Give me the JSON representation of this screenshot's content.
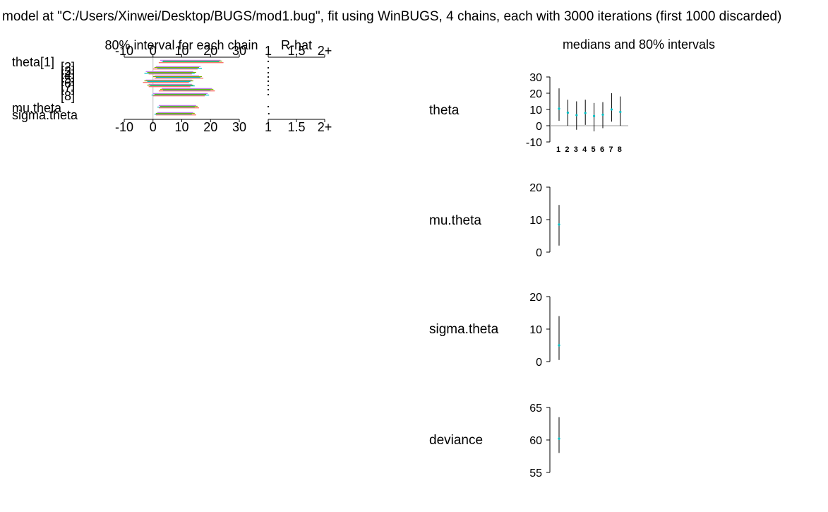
{
  "header": {
    "title": "model at \"C:/Users/Xinwei/Desktop/BUGS/mod1.bug\", fit using WinBUGS, 4 chains, each with 3000 iterations (first 1000 discarded)"
  },
  "colors": {
    "chains": [
      "#c77cff",
      "#7cae00",
      "#00bfc4",
      "#f8766d"
    ],
    "interval_line": "#000000",
    "median_point": "#00bfc4",
    "grid_line": "#999999",
    "zero_line": "#bdbdbd"
  },
  "chart_data": [
    {
      "type": "interval",
      "title": "80% interval for each chain",
      "rows": [
        "theta[1]",
        "[2]",
        "[3]",
        "[4]",
        "[5]",
        "[6]",
        "[7]",
        "[8]",
        "mu.theta",
        "sigma.theta"
      ],
      "xlim": [
        -10,
        30
      ],
      "x_ticks": [
        "-10",
        "0",
        "10",
        "20",
        "30"
      ],
      "x_tick_values": [
        -10,
        0,
        10,
        20,
        30
      ],
      "axis_top": true,
      "axis_bottom": true,
      "series": [
        {
          "values": [
            [
              2.5,
              23.5
            ],
            [
              1.0,
              16.5
            ],
            [
              -2.5,
              14.0
            ],
            [
              0.5,
              16.0
            ],
            [
              -2.5,
              13.5
            ],
            [
              -1.5,
              13.5
            ],
            [
              3.0,
              20.5
            ],
            [
              0.0,
              19.0
            ],
            [
              2.0,
              15.0
            ],
            [
              1.5,
              14.0
            ]
          ]
        },
        {
          "values": [
            [
              3.5,
              24.0
            ],
            [
              0.5,
              16.0
            ],
            [
              -2.0,
              15.0
            ],
            [
              0.0,
              17.0
            ],
            [
              -3.0,
              14.0
            ],
            [
              -2.0,
              14.0
            ],
            [
              2.5,
              21.0
            ],
            [
              0.5,
              18.5
            ],
            [
              2.5,
              15.5
            ],
            [
              1.0,
              14.5
            ]
          ]
        },
        {
          "values": [
            [
              3.0,
              23.0
            ],
            [
              1.5,
              17.0
            ],
            [
              -3.0,
              14.5
            ],
            [
              1.0,
              16.5
            ],
            [
              -2.0,
              13.0
            ],
            [
              -1.0,
              14.5
            ],
            [
              3.5,
              20.0
            ],
            [
              -0.5,
              19.5
            ],
            [
              1.5,
              14.5
            ],
            [
              0.5,
              13.5
            ]
          ]
        },
        {
          "values": [
            [
              2.0,
              24.5
            ],
            [
              0.0,
              15.5
            ],
            [
              -1.5,
              13.5
            ],
            [
              0.5,
              17.5
            ],
            [
              -3.5,
              12.5
            ],
            [
              -1.5,
              13.0
            ],
            [
              2.0,
              21.5
            ],
            [
              0.0,
              18.0
            ],
            [
              2.0,
              16.0
            ],
            [
              1.0,
              15.0
            ]
          ]
        }
      ]
    },
    {
      "type": "scatter",
      "title": "R-hat",
      "rows": [
        "theta[1]",
        "[2]",
        "[3]",
        "[4]",
        "[5]",
        "[6]",
        "[7]",
        "[8]",
        "mu.theta",
        "sigma.theta"
      ],
      "xlim": [
        1,
        2
      ],
      "x_ticks": [
        "1",
        "1.5",
        "2+"
      ],
      "x_tick_values": [
        1,
        1.5,
        2
      ],
      "values": [
        1.0,
        1.0,
        1.0,
        1.0,
        1.0,
        1.0,
        1.0,
        1.0,
        1.0,
        1.01
      ]
    },
    {
      "type": "interval",
      "title": "medians and 80% intervals",
      "panels": [
        {
          "name": "theta",
          "ylim": [
            -10,
            30
          ],
          "y_ticks": [
            "30",
            "20",
            "10",
            "0",
            "-10"
          ],
          "y_tick_values": [
            30,
            20,
            10,
            0,
            -10
          ],
          "categories": [
            "1",
            "2",
            "3",
            "4",
            "5",
            "6",
            "7",
            "8"
          ],
          "median": [
            10.5,
            8.0,
            6.5,
            7.8,
            6.0,
            6.8,
            10.0,
            8.5
          ],
          "low": [
            3.0,
            0.0,
            -2.5,
            0.5,
            -3.5,
            -1.5,
            2.5,
            0.0
          ],
          "high": [
            23.0,
            16.0,
            15.0,
            16.0,
            14.0,
            14.5,
            20.0,
            18.0
          ],
          "zero_line": true
        },
        {
          "name": "mu.theta",
          "ylim": [
            0,
            20
          ],
          "y_ticks": [
            "20",
            "10",
            "0"
          ],
          "y_tick_values": [
            20,
            10,
            0
          ],
          "categories": [
            "1"
          ],
          "median": [
            8.5
          ],
          "low": [
            2.0
          ],
          "high": [
            14.5
          ]
        },
        {
          "name": "sigma.theta",
          "ylim": [
            0,
            20
          ],
          "y_ticks": [
            "20",
            "10",
            "0"
          ],
          "y_tick_values": [
            20,
            10,
            0
          ],
          "categories": [
            "1"
          ],
          "median": [
            5.0
          ],
          "low": [
            0.5
          ],
          "high": [
            14.0
          ]
        },
        {
          "name": "deviance",
          "ylim": [
            55,
            65
          ],
          "y_ticks": [
            "65",
            "60",
            "55"
          ],
          "y_tick_values": [
            65,
            60,
            55
          ],
          "categories": [
            "1"
          ],
          "median": [
            60.2
          ],
          "low": [
            58.0
          ],
          "high": [
            63.5
          ]
        }
      ]
    }
  ]
}
